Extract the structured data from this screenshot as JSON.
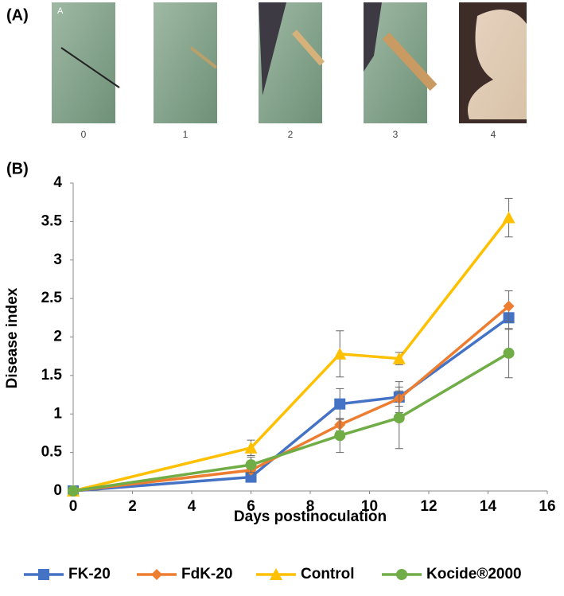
{
  "panel_a": {
    "label": "(A)",
    "corner_label": "A",
    "scale": [
      "0",
      "1",
      "2",
      "3",
      "4"
    ]
  },
  "panel_b": {
    "label": "(B)"
  },
  "chart_data": {
    "type": "line",
    "x_label": "Days postinoculation",
    "y_label": "Disease index",
    "x": [
      0,
      6,
      9,
      11,
      14.7
    ],
    "series": [
      {
        "name": "FK-20",
        "color": "#4472c4",
        "marker": "square",
        "values": [
          0,
          0.18,
          1.13,
          1.22,
          2.25
        ],
        "errors": [
          0,
          0.03,
          0.2,
          0.2,
          0.15
        ]
      },
      {
        "name": "FdK-20",
        "color": "#ed7d31",
        "marker": "diamond",
        "values": [
          0,
          0.27,
          0.86,
          1.2,
          2.4
        ],
        "errors": [
          0,
          0.04,
          0.08,
          0.1,
          0.2
        ]
      },
      {
        "name": "Control",
        "color": "#ffc000",
        "marker": "triangle",
        "values": [
          0,
          0.56,
          1.78,
          1.72,
          3.55
        ],
        "errors": [
          0,
          0.1,
          0.3,
          0.08,
          0.25
        ]
      },
      {
        "name": "Kocide®2000",
        "color": "#70ad47",
        "marker": "circle",
        "values": [
          0,
          0.34,
          0.72,
          0.95,
          1.79
        ],
        "errors": [
          0,
          0.1,
          0.22,
          0.4,
          0.32
        ]
      }
    ],
    "xlim": [
      0,
      16
    ],
    "xticks": [
      0,
      2,
      4,
      6,
      8,
      10,
      12,
      14,
      16
    ],
    "ylim": [
      0,
      4
    ],
    "yticks": [
      0,
      0.5,
      1,
      1.5,
      2,
      2.5,
      3,
      3.5,
      4
    ],
    "grid": false,
    "legend": "bottom"
  }
}
